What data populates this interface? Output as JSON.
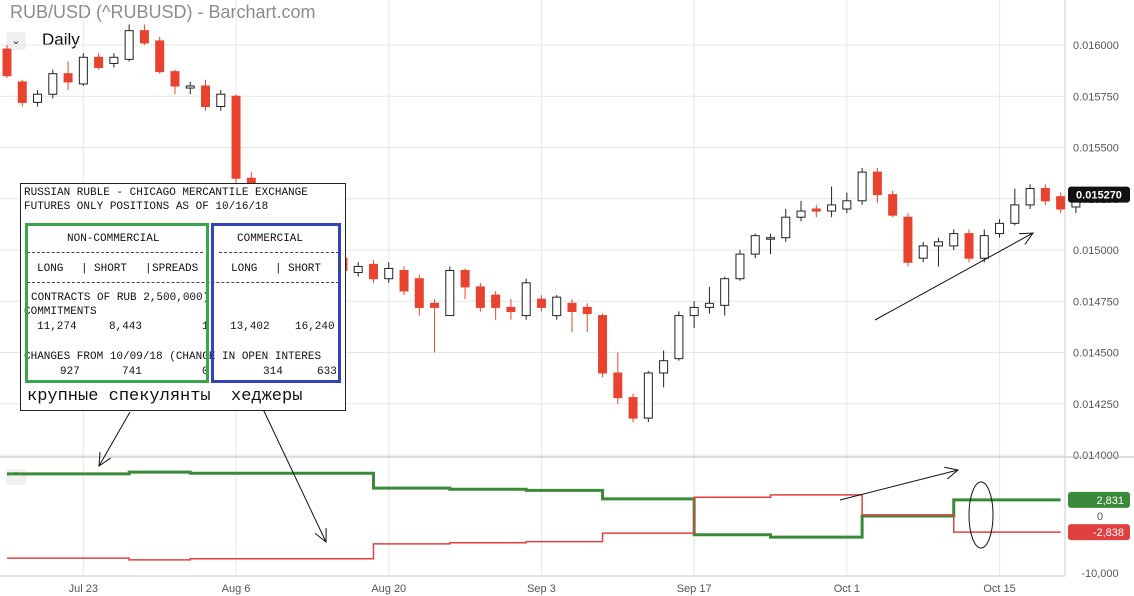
{
  "header": {
    "title": "RUB/USD (^RUBUSD) - Barchart.com",
    "period": "Daily",
    "period_icon": "chevron-down-icon",
    "collapse_icon": "chevron-up-icon"
  },
  "chart_data": [
    {
      "type": "candlestick",
      "title": "RUB/USD (^RUBUSD) - Barchart.com",
      "x_ticks": [
        "Jul 23",
        "Aug 6",
        "Aug 20",
        "Sep 3",
        "Sep 17",
        "Oct 1",
        "Oct 15"
      ],
      "y_ticks": [
        "0.016000",
        "0.015750",
        "0.015500",
        "0.015250",
        "0.015000",
        "0.014750",
        "0.014500",
        "0.014250",
        "0.014000"
      ],
      "ylim": [
        0.0139,
        0.0161
      ],
      "last_price": "0.015270",
      "colors": {
        "up_fill": "#ffffff",
        "up_stroke": "#222222",
        "down": "#e8432e"
      },
      "candles": [
        {
          "date": "Jul 16",
          "o": 0.01598,
          "h": 0.016,
          "l": 0.01584,
          "c": 0.01585
        },
        {
          "date": "Jul 17",
          "o": 0.01582,
          "h": 0.01583,
          "l": 0.0157,
          "c": 0.01572
        },
        {
          "date": "Jul 18",
          "o": 0.01572,
          "h": 0.01578,
          "l": 0.0157,
          "c": 0.01576
        },
        {
          "date": "Jul 19",
          "o": 0.01576,
          "h": 0.01588,
          "l": 0.01574,
          "c": 0.01586
        },
        {
          "date": "Jul 20",
          "o": 0.01586,
          "h": 0.01592,
          "l": 0.01578,
          "c": 0.01582
        },
        {
          "date": "Jul 23",
          "o": 0.01581,
          "h": 0.01596,
          "l": 0.0158,
          "c": 0.01594
        },
        {
          "date": "Jul 24",
          "o": 0.01594,
          "h": 0.01596,
          "l": 0.01588,
          "c": 0.01589
        },
        {
          "date": "Jul 25",
          "o": 0.01591,
          "h": 0.01596,
          "l": 0.01589,
          "c": 0.01594
        },
        {
          "date": "Jul 26",
          "o": 0.01593,
          "h": 0.0161,
          "l": 0.01592,
          "c": 0.01607
        },
        {
          "date": "Jul 27",
          "o": 0.01607,
          "h": 0.0161,
          "l": 0.016,
          "c": 0.01601
        },
        {
          "date": "Jul 30",
          "o": 0.01602,
          "h": 0.01604,
          "l": 0.01586,
          "c": 0.01587
        },
        {
          "date": "Jul 31",
          "o": 0.01587,
          "h": 0.01588,
          "l": 0.01576,
          "c": 0.0158
        },
        {
          "date": "Aug 1",
          "o": 0.01579,
          "h": 0.01582,
          "l": 0.01576,
          "c": 0.0158
        },
        {
          "date": "Aug 2",
          "o": 0.0158,
          "h": 0.01583,
          "l": 0.01568,
          "c": 0.0157
        },
        {
          "date": "Aug 3",
          "o": 0.0157,
          "h": 0.01578,
          "l": 0.01568,
          "c": 0.01576
        },
        {
          "date": "Aug 6",
          "o": 0.01575,
          "h": 0.01576,
          "l": 0.0153,
          "c": 0.01535
        },
        {
          "date": "Aug 7",
          "o": 0.01535,
          "h": 0.01538,
          "l": 0.0151,
          "c": 0.01515
        },
        {
          "date": "Aug 8",
          "o": 0.01515,
          "h": 0.01516,
          "l": 0.015,
          "c": 0.01502
        },
        {
          "date": "Aug 9",
          "o": 0.01502,
          "h": 0.01504,
          "l": 0.01496,
          "c": 0.015
        },
        {
          "date": "Aug 10",
          "o": 0.015,
          "h": 0.01502,
          "l": 0.01494,
          "c": 0.01497
        },
        {
          "date": "Aug 13",
          "o": 0.01497,
          "h": 0.01499,
          "l": 0.01492,
          "c": 0.01494
        },
        {
          "date": "Aug 14",
          "o": 0.01494,
          "h": 0.01498,
          "l": 0.0149,
          "c": 0.01496
        },
        {
          "date": "Aug 15",
          "o": 0.01496,
          "h": 0.01498,
          "l": 0.01488,
          "c": 0.0149
        },
        {
          "date": "Aug 16",
          "o": 0.01489,
          "h": 0.01494,
          "l": 0.01487,
          "c": 0.01492
        },
        {
          "date": "Aug 17",
          "o": 0.01493,
          "h": 0.01495,
          "l": 0.01484,
          "c": 0.01486
        },
        {
          "date": "Aug 20",
          "o": 0.01486,
          "h": 0.01494,
          "l": 0.01484,
          "c": 0.01491
        },
        {
          "date": "Aug 21",
          "o": 0.0149,
          "h": 0.01492,
          "l": 0.01478,
          "c": 0.0148
        },
        {
          "date": "Aug 22",
          "o": 0.01486,
          "h": 0.01488,
          "l": 0.01468,
          "c": 0.01472
        },
        {
          "date": "Aug 23",
          "o": 0.01474,
          "h": 0.01476,
          "l": 0.0145,
          "c": 0.01472
        },
        {
          "date": "Aug 24",
          "o": 0.01468,
          "h": 0.01492,
          "l": 0.01468,
          "c": 0.0149
        },
        {
          "date": "Aug 27",
          "o": 0.0149,
          "h": 0.01491,
          "l": 0.01476,
          "c": 0.01482
        },
        {
          "date": "Aug 28",
          "o": 0.01482,
          "h": 0.01484,
          "l": 0.0147,
          "c": 0.01472
        },
        {
          "date": "Aug 29",
          "o": 0.01478,
          "h": 0.0148,
          "l": 0.01466,
          "c": 0.01472
        },
        {
          "date": "Aug 30",
          "o": 0.01472,
          "h": 0.01476,
          "l": 0.01466,
          "c": 0.0147
        },
        {
          "date": "Aug 31",
          "o": 0.01468,
          "h": 0.01486,
          "l": 0.01466,
          "c": 0.01484
        },
        {
          "date": "Sep 3",
          "o": 0.01476,
          "h": 0.01478,
          "l": 0.0147,
          "c": 0.01472
        },
        {
          "date": "Sep 4",
          "o": 0.01468,
          "h": 0.01478,
          "l": 0.01466,
          "c": 0.01477
        },
        {
          "date": "Sep 5",
          "o": 0.01474,
          "h": 0.01476,
          "l": 0.0146,
          "c": 0.0147
        },
        {
          "date": "Sep 6",
          "o": 0.01472,
          "h": 0.01474,
          "l": 0.0146,
          "c": 0.01469
        },
        {
          "date": "Sep 7",
          "o": 0.01468,
          "h": 0.01469,
          "l": 0.01438,
          "c": 0.0144
        },
        {
          "date": "Sep 10",
          "o": 0.0144,
          "h": 0.0145,
          "l": 0.01425,
          "c": 0.01428
        },
        {
          "date": "Sep 11",
          "o": 0.01428,
          "h": 0.0143,
          "l": 0.01416,
          "c": 0.01418
        },
        {
          "date": "Sep 12",
          "o": 0.01418,
          "h": 0.01441,
          "l": 0.01416,
          "c": 0.0144
        },
        {
          "date": "Sep 13",
          "o": 0.0144,
          "h": 0.01451,
          "l": 0.01433,
          "c": 0.01446
        },
        {
          "date": "Sep 14",
          "o": 0.01447,
          "h": 0.0147,
          "l": 0.01446,
          "c": 0.01468
        },
        {
          "date": "Sep 17",
          "o": 0.01468,
          "h": 0.01475,
          "l": 0.01462,
          "c": 0.01472
        },
        {
          "date": "Sep 18",
          "o": 0.01472,
          "h": 0.01482,
          "l": 0.01469,
          "c": 0.01474
        },
        {
          "date": "Sep 19",
          "o": 0.01473,
          "h": 0.01487,
          "l": 0.01468,
          "c": 0.01486
        },
        {
          "date": "Sep 20",
          "o": 0.01486,
          "h": 0.015,
          "l": 0.01485,
          "c": 0.01498
        },
        {
          "date": "Sep 21",
          "o": 0.01498,
          "h": 0.01508,
          "l": 0.01496,
          "c": 0.01507
        },
        {
          "date": "Sep 24",
          "o": 0.01506,
          "h": 0.01508,
          "l": 0.01498,
          "c": 0.01506
        },
        {
          "date": "Sep 25",
          "o": 0.01506,
          "h": 0.0152,
          "l": 0.01504,
          "c": 0.01516
        },
        {
          "date": "Sep 26",
          "o": 0.01516,
          "h": 0.01524,
          "l": 0.01514,
          "c": 0.01519
        },
        {
          "date": "Sep 27",
          "o": 0.0152,
          "h": 0.01522,
          "l": 0.01516,
          "c": 0.01519
        },
        {
          "date": "Sep 28",
          "o": 0.01519,
          "h": 0.01531,
          "l": 0.01516,
          "c": 0.01522
        },
        {
          "date": "Oct 1",
          "o": 0.0152,
          "h": 0.01528,
          "l": 0.01518,
          "c": 0.01524
        },
        {
          "date": "Oct 2",
          "o": 0.01524,
          "h": 0.0154,
          "l": 0.01522,
          "c": 0.01538
        },
        {
          "date": "Oct 3",
          "o": 0.01538,
          "h": 0.0154,
          "l": 0.01523,
          "c": 0.01527
        },
        {
          "date": "Oct 4",
          "o": 0.01527,
          "h": 0.01529,
          "l": 0.01516,
          "c": 0.01517
        },
        {
          "date": "Oct 5",
          "o": 0.01516,
          "h": 0.01518,
          "l": 0.01492,
          "c": 0.01494
        },
        {
          "date": "Oct 8",
          "o": 0.01496,
          "h": 0.01504,
          "l": 0.01494,
          "c": 0.01502
        },
        {
          "date": "Oct 9",
          "o": 0.01502,
          "h": 0.01506,
          "l": 0.01492,
          "c": 0.01504
        },
        {
          "date": "Oct 10",
          "o": 0.01502,
          "h": 0.0151,
          "l": 0.015,
          "c": 0.01508
        },
        {
          "date": "Oct 11",
          "o": 0.01508,
          "h": 0.0151,
          "l": 0.01494,
          "c": 0.01496
        },
        {
          "date": "Oct 12",
          "o": 0.01496,
          "h": 0.0151,
          "l": 0.01494,
          "c": 0.01507
        },
        {
          "date": "Oct 15",
          "o": 0.01508,
          "h": 0.01515,
          "l": 0.01506,
          "c": 0.01513
        },
        {
          "date": "Oct 16",
          "o": 0.01513,
          "h": 0.0153,
          "l": 0.01512,
          "c": 0.01522
        },
        {
          "date": "Oct 17",
          "o": 0.01522,
          "h": 0.01532,
          "l": 0.0152,
          "c": 0.0153
        },
        {
          "date": "Oct 18",
          "o": 0.0153,
          "h": 0.01532,
          "l": 0.01522,
          "c": 0.01524
        },
        {
          "date": "Oct 19",
          "o": 0.01526,
          "h": 0.01528,
          "l": 0.01518,
          "c": 0.0152
        },
        {
          "date": "Oct 22",
          "o": 0.01521,
          "h": 0.0153,
          "l": 0.01518,
          "c": 0.01527
        }
      ]
    },
    {
      "type": "line",
      "y_ticks": [
        "0",
        "-10,000"
      ],
      "ylim": [
        -10000,
        8000
      ],
      "series": [
        {
          "color": "#3a8a3a",
          "last_label": "2,831",
          "points": [
            [
              "Jul 16",
              7400
            ],
            [
              "Jul 26",
              7400
            ],
            [
              "Jul 26",
              7700
            ],
            [
              "Aug 1",
              7700
            ],
            [
              "Aug 1",
              7500
            ],
            [
              "Aug 17",
              7500
            ],
            [
              "Aug 17",
              4900
            ],
            [
              "Aug 24",
              4900
            ],
            [
              "Aug 24",
              4700
            ],
            [
              "Aug 31",
              4700
            ],
            [
              "Aug 31",
              4500
            ],
            [
              "Sep 7",
              4500
            ],
            [
              "Sep 7",
              3000
            ],
            [
              "Sep 17",
              3000
            ],
            [
              "Sep 17",
              -3300
            ],
            [
              "Sep 24",
              -3300
            ],
            [
              "Sep 24",
              -3700
            ],
            [
              "Oct 2",
              -3700
            ],
            [
              "Oct 2",
              0
            ],
            [
              "Oct 10",
              0
            ],
            [
              "Oct 10",
              2831
            ],
            [
              "Oct 19",
              2831
            ]
          ]
        },
        {
          "color": "#e04040",
          "last_label": "-2,838",
          "points": [
            [
              "Jul 16",
              -7400
            ],
            [
              "Jul 26",
              -7400
            ],
            [
              "Jul 26",
              -7700
            ],
            [
              "Aug 1",
              -7700
            ],
            [
              "Aug 1",
              -7500
            ],
            [
              "Aug 17",
              -7500
            ],
            [
              "Aug 17",
              -4900
            ],
            [
              "Aug 24",
              -4900
            ],
            [
              "Aug 24",
              -4700
            ],
            [
              "Aug 31",
              -4700
            ],
            [
              "Aug 31",
              -4500
            ],
            [
              "Sep 7",
              -4500
            ],
            [
              "Sep 7",
              -3000
            ],
            [
              "Sep 17",
              -3000
            ],
            [
              "Sep 17",
              3300
            ],
            [
              "Sep 24",
              3300
            ],
            [
              "Sep 24",
              3700
            ],
            [
              "Oct 2",
              3700
            ],
            [
              "Oct 2",
              200
            ],
            [
              "Oct 10",
              200
            ],
            [
              "Oct 10",
              -2838
            ],
            [
              "Oct 19",
              -2838
            ]
          ]
        }
      ]
    }
  ],
  "cot_report": {
    "line1": "RUSSIAN RUBLE - CHICAGO MERCANTILE EXCHANGE",
    "line2": "FUTURES ONLY POSITIONS AS OF 10/16/18",
    "noncommercial": "NON-COMMERCIAL",
    "commercial": "COMMERCIAL",
    "col_long": "LONG",
    "col_short": "SHORT",
    "col_spreads": "SPREADS",
    "col_long2": "LONG",
    "col_short2": "SHORT",
    "contracts_line": "CONTRACTS OF RUB 2,500,000)",
    "commitments_label": "COMMITMENTS",
    "commitments": [
      "11,274",
      "8,443",
      "1",
      "13,402",
      "16,240"
    ],
    "changes_line": "CHANGES FROM 10/09/18 (CHANGE IN OPEN INTERES",
    "changes": [
      "927",
      "741",
      "0",
      "314",
      "633"
    ]
  },
  "annotations": {
    "speculators": "крупные спекулянты",
    "hedgers": "хеджеры"
  }
}
